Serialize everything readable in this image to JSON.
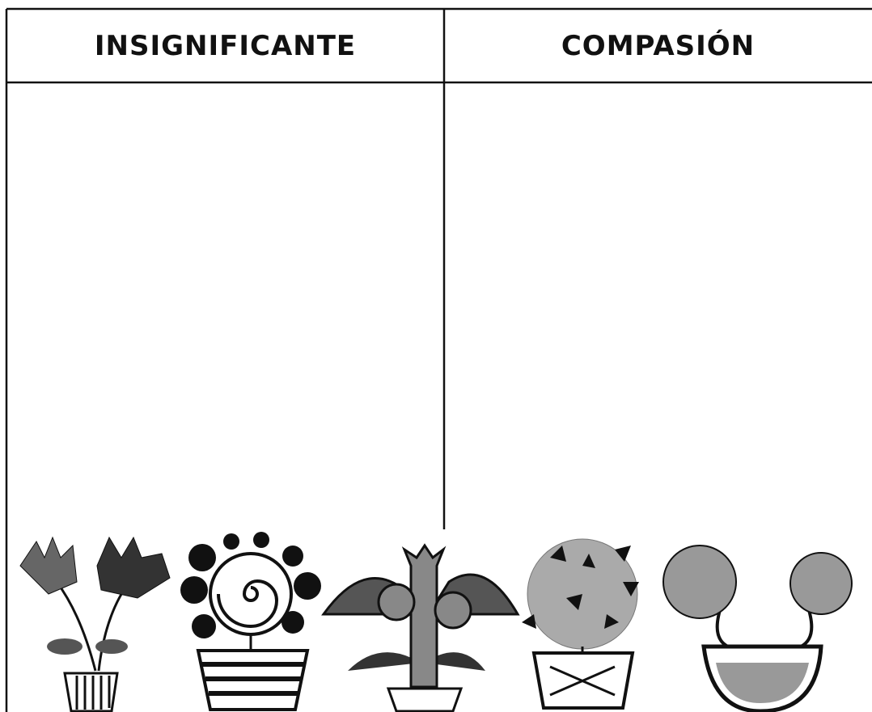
{
  "table": {
    "headers": [
      "INSIGNIFICANTE",
      "COMPASIÓN"
    ]
  }
}
